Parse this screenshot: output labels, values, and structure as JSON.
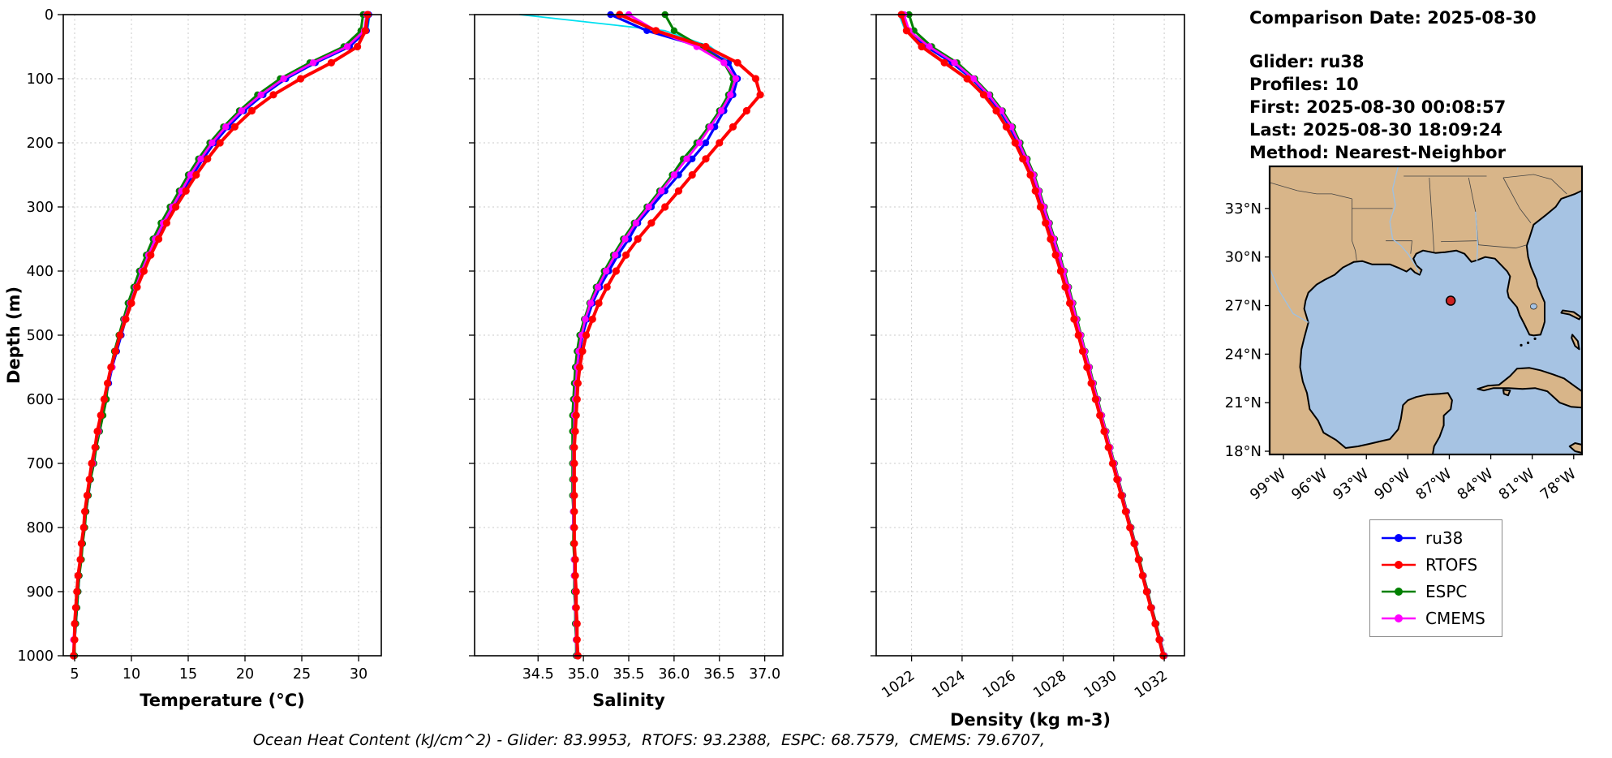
{
  "info": {
    "comparison_date": "Comparison Date: 2025-08-30",
    "glider": "Glider: ru38",
    "profiles": "Profiles: 10",
    "first": "First: 2025-08-30 00:08:57",
    "last": "Last: 2025-08-30 18:09:24",
    "method": "Method: Nearest-Neighbor"
  },
  "footer": {
    "text": "Ocean Heat Content (kJ/cm^2) - Glider: 83.9953,  RTOFS: 93.2388,  ESPC: 68.7579,  CMEMS: 79.6707,"
  },
  "legend": {
    "items": [
      {
        "label": "ru38",
        "color": "#0000ff"
      },
      {
        "label": "RTOFS",
        "color": "#ff0000"
      },
      {
        "label": "ESPC",
        "color": "#008000"
      },
      {
        "label": "CMEMS",
        "color": "#ff00ff"
      }
    ]
  },
  "map": {
    "water_color": "#a6c3e3",
    "land_color": "#d8b589",
    "marker": {
      "lon": -86.9,
      "lat": 27.3,
      "color": "#cc2222"
    },
    "lat_ticks": [
      {
        "value": 33,
        "label": "33°N"
      },
      {
        "value": 30,
        "label": "30°N"
      },
      {
        "value": 27,
        "label": "27°N"
      },
      {
        "value": 24,
        "label": "24°N"
      },
      {
        "value": 21,
        "label": "21°N"
      },
      {
        "value": 18,
        "label": "18°N"
      }
    ],
    "lon_ticks": [
      {
        "value": -99,
        "label": "99°W"
      },
      {
        "value": -96,
        "label": "96°W"
      },
      {
        "value": -93,
        "label": "93°W"
      },
      {
        "value": -90,
        "label": "90°W"
      },
      {
        "value": -87,
        "label": "87°W"
      },
      {
        "value": -84,
        "label": "84°W"
      },
      {
        "value": -81,
        "label": "81°W"
      },
      {
        "value": -78,
        "label": "78°W"
      }
    ]
  },
  "chart_data": {
    "type": "line",
    "ylabel": "Depth (m)",
    "ydomain": [
      0,
      1000
    ],
    "yticks": [
      0,
      100,
      200,
      300,
      400,
      500,
      600,
      700,
      800,
      900,
      1000
    ],
    "depths": [
      0,
      25,
      50,
      75,
      100,
      125,
      150,
      175,
      200,
      225,
      250,
      275,
      300,
      325,
      350,
      375,
      400,
      425,
      450,
      475,
      500,
      525,
      550,
      575,
      600,
      625,
      650,
      675,
      700,
      725,
      750,
      775,
      800,
      825,
      850,
      875,
      900,
      925,
      950,
      975,
      1000
    ],
    "plots": [
      {
        "id": "temperature",
        "xlabel": "Temperature (°C)",
        "key": "temperature",
        "xdomain": [
          4,
          32
        ],
        "xticks": [
          5,
          10,
          15,
          20,
          25,
          30
        ],
        "xtick_labels": [
          "5",
          "10",
          "15",
          "20",
          "25",
          "30"
        ],
        "rotate_xticks": false,
        "show_ylabels": true
      },
      {
        "id": "salinity",
        "xlabel": "Salinity",
        "key": "salinity",
        "xdomain": [
          33.8,
          37.2
        ],
        "xticks": [
          34.5,
          35.0,
          35.5,
          36.0,
          36.5,
          37.0
        ],
        "xtick_labels": [
          "34.5",
          "35.0",
          "35.5",
          "36.0",
          "36.5",
          "37.0"
        ],
        "rotate_xticks": false,
        "show_ylabels": false
      },
      {
        "id": "density",
        "xlabel": "Density (kg m-3)",
        "key": "density",
        "xdomain": [
          1020.6,
          1032.8
        ],
        "xticks": [
          1022,
          1024,
          1026,
          1028,
          1030,
          1032
        ],
        "xtick_labels": [
          "1022",
          "1024",
          "1026",
          "1028",
          "1030",
          "1032"
        ],
        "rotate_xticks": true,
        "show_ylabels": false
      }
    ],
    "series": [
      {
        "name": "ru38 raw profiles",
        "color": "#00e0f0",
        "line_width": 1.8,
        "marker_radius": 0,
        "in_legend": false,
        "temperature": [
          31.0,
          30.8,
          29.1,
          26.0,
          23.4,
          21.4,
          19.7,
          18.4,
          17.2,
          16.2,
          15.3,
          14.4,
          13.6,
          12.8,
          12.1,
          11.5,
          10.9,
          10.4,
          9.9,
          9.4,
          9.0,
          8.6,
          8.2,
          7.9,
          7.6,
          7.3,
          7.0,
          6.8,
          6.5,
          6.3,
          6.1,
          5.9,
          5.8,
          5.6,
          5.5,
          5.4,
          5.2,
          5.1,
          5.0,
          5.0,
          4.9
        ],
        "salinity": [
          34.3,
          35.9,
          36.4,
          36.62,
          36.68,
          36.62,
          36.5,
          36.4,
          36.28,
          36.14,
          36.0,
          35.87,
          35.72,
          35.58,
          35.46,
          35.35,
          35.25,
          35.16,
          35.08,
          35.02,
          34.98,
          34.95,
          34.93,
          34.91,
          34.9,
          34.9,
          34.89,
          34.89,
          34.89,
          34.88,
          34.88,
          34.89,
          34.89,
          34.89,
          34.9,
          34.9,
          34.9,
          34.91,
          34.91,
          34.92,
          34.92
        ],
        "density": [
          1021.5,
          1021.75,
          1022.55,
          1023.55,
          1024.35,
          1024.95,
          1025.45,
          1025.85,
          1026.15,
          1026.45,
          1026.75,
          1026.96,
          1027.16,
          1027.36,
          1027.56,
          1027.76,
          1027.96,
          1028.13,
          1028.3,
          1028.47,
          1028.64,
          1028.8,
          1028.97,
          1029.14,
          1029.3,
          1029.47,
          1029.64,
          1029.8,
          1029.97,
          1030.14,
          1030.3,
          1030.47,
          1030.64,
          1030.8,
          1030.97,
          1031.14,
          1031.3,
          1031.47,
          1031.64,
          1031.8,
          1031.97
        ]
      },
      {
        "name": "ru38",
        "color": "#0000ff",
        "line_width": 3.2,
        "marker_radius": 4.2,
        "in_legend": true,
        "temperature": [
          30.9,
          30.7,
          29.2,
          26.2,
          23.6,
          21.6,
          19.9,
          18.5,
          17.3,
          16.3,
          15.4,
          14.5,
          13.7,
          12.9,
          12.2,
          11.6,
          11.0,
          10.5,
          10.0,
          9.5,
          9.1,
          8.7,
          8.3,
          8.0,
          7.7,
          7.4,
          7.1,
          6.8,
          6.6,
          6.4,
          6.2,
          6.0,
          5.8,
          5.7,
          5.5,
          5.4,
          5.3,
          5.2,
          5.1,
          5.0,
          4.9
        ],
        "salinity": [
          35.3,
          35.7,
          36.3,
          36.6,
          36.7,
          36.65,
          36.55,
          36.45,
          36.35,
          36.2,
          36.05,
          35.9,
          35.75,
          35.6,
          35.5,
          35.38,
          35.28,
          35.18,
          35.1,
          35.04,
          34.99,
          34.96,
          34.94,
          34.92,
          34.91,
          34.9,
          34.9,
          34.89,
          34.89,
          34.89,
          34.89,
          34.89,
          34.89,
          34.9,
          34.9,
          34.9,
          34.91,
          34.91,
          34.92,
          34.92,
          34.93
        ],
        "density": [
          1021.6,
          1021.8,
          1022.6,
          1023.6,
          1024.4,
          1025.0,
          1025.5,
          1025.9,
          1026.2,
          1026.5,
          1026.8,
          1027.0,
          1027.2,
          1027.4,
          1027.6,
          1027.8,
          1028.0,
          1028.17,
          1028.34,
          1028.5,
          1028.67,
          1028.84,
          1029.0,
          1029.17,
          1029.34,
          1029.5,
          1029.67,
          1029.84,
          1030.0,
          1030.17,
          1030.34,
          1030.5,
          1030.67,
          1030.84,
          1031.0,
          1031.17,
          1031.34,
          1031.5,
          1031.67,
          1031.84,
          1032.0
        ]
      },
      {
        "name": "ESPC",
        "color": "#008000",
        "line_width": 3.0,
        "marker_radius": 4.2,
        "in_legend": true,
        "temperature": [
          30.4,
          30.2,
          28.7,
          25.7,
          23.1,
          21.1,
          19.5,
          18.1,
          16.9,
          15.9,
          15.0,
          14.2,
          13.4,
          12.6,
          11.9,
          11.3,
          10.7,
          10.2,
          9.7,
          9.3,
          8.9,
          8.5,
          8.2,
          7.9,
          7.8,
          7.5,
          7.2,
          6.9,
          6.7,
          6.4,
          6.2,
          6.0,
          5.9,
          5.7,
          5.6,
          5.4,
          5.3,
          5.2,
          5.1,
          5.0,
          5.0
        ],
        "salinity": [
          35.9,
          36.0,
          36.3,
          36.55,
          36.65,
          36.6,
          36.5,
          36.38,
          36.25,
          36.1,
          35.98,
          35.84,
          35.7,
          35.56,
          35.44,
          35.33,
          35.23,
          35.14,
          35.07,
          35.01,
          34.96,
          34.93,
          34.91,
          34.9,
          34.89,
          34.88,
          34.88,
          34.88,
          34.88,
          34.88,
          34.88,
          34.89,
          34.89,
          34.89,
          34.9,
          34.9,
          34.9,
          34.91,
          34.91,
          34.92,
          34.92
        ],
        "density": [
          1021.9,
          1022.1,
          1022.8,
          1023.8,
          1024.5,
          1025.1,
          1025.6,
          1026.0,
          1026.3,
          1026.58,
          1026.85,
          1027.06,
          1027.26,
          1027.46,
          1027.66,
          1027.86,
          1028.05,
          1028.22,
          1028.39,
          1028.55,
          1028.71,
          1028.87,
          1029.04,
          1029.2,
          1029.37,
          1029.53,
          1029.7,
          1029.86,
          1030.03,
          1030.19,
          1030.36,
          1030.52,
          1030.69,
          1030.85,
          1031.02,
          1031.18,
          1031.35,
          1031.51,
          1031.68,
          1031.84,
          1032.01
        ]
      },
      {
        "name": "CMEMS",
        "color": "#ff00ff",
        "line_width": 2.8,
        "marker_radius": 4.2,
        "in_legend": true,
        "temperature": [
          30.7,
          30.5,
          29.0,
          26.0,
          23.4,
          21.4,
          19.7,
          18.3,
          17.1,
          16.1,
          15.2,
          14.4,
          13.6,
          12.8,
          12.1,
          11.5,
          10.9,
          10.4,
          9.9,
          9.4,
          9.0,
          8.6,
          8.3,
          7.9,
          7.6,
          7.3,
          7.1,
          6.8,
          6.6,
          6.3,
          6.1,
          5.9,
          5.8,
          5.6,
          5.5,
          5.3,
          5.2,
          5.1,
          5.0,
          4.9,
          4.9
        ],
        "salinity": [
          35.5,
          35.8,
          36.25,
          36.55,
          36.68,
          36.62,
          36.52,
          36.4,
          36.28,
          36.14,
          36.0,
          35.86,
          35.72,
          35.58,
          35.46,
          35.35,
          35.25,
          35.16,
          35.08,
          35.02,
          34.98,
          34.95,
          34.93,
          34.92,
          34.91,
          34.9,
          34.9,
          34.89,
          34.89,
          34.89,
          34.89,
          34.89,
          34.89,
          34.9,
          34.9,
          34.9,
          34.91,
          34.91,
          34.92,
          34.92,
          34.93
        ],
        "density": [
          1021.7,
          1021.9,
          1022.7,
          1023.7,
          1024.45,
          1025.05,
          1025.55,
          1025.95,
          1026.25,
          1026.54,
          1026.82,
          1027.03,
          1027.23,
          1027.43,
          1027.63,
          1027.83,
          1028.02,
          1028.19,
          1028.36,
          1028.52,
          1028.69,
          1028.85,
          1029.02,
          1029.18,
          1029.35,
          1029.52,
          1029.68,
          1029.85,
          1030.01,
          1030.18,
          1030.34,
          1030.51,
          1030.67,
          1030.84,
          1031.0,
          1031.17,
          1031.33,
          1031.5,
          1031.66,
          1031.83,
          1032.0
        ]
      },
      {
        "name": "RTOFS",
        "color": "#ff0000",
        "line_width": 4.0,
        "marker_radius": 4.6,
        "in_legend": true,
        "temperature": [
          30.8,
          30.6,
          29.9,
          27.6,
          24.9,
          22.5,
          20.6,
          19.1,
          17.8,
          16.7,
          15.7,
          14.8,
          13.9,
          13.1,
          12.4,
          11.7,
          11.1,
          10.5,
          10.0,
          9.5,
          9.0,
          8.6,
          8.2,
          7.9,
          7.6,
          7.3,
          7.0,
          6.8,
          6.5,
          6.3,
          6.1,
          5.9,
          5.8,
          5.6,
          5.5,
          5.3,
          5.2,
          5.1,
          5.0,
          5.0,
          4.9
        ],
        "salinity": [
          35.4,
          35.8,
          36.35,
          36.7,
          36.9,
          36.95,
          36.8,
          36.65,
          36.5,
          36.35,
          36.2,
          36.05,
          35.9,
          35.75,
          35.6,
          35.47,
          35.36,
          35.26,
          35.17,
          35.1,
          35.03,
          34.99,
          34.96,
          34.94,
          34.93,
          34.92,
          34.91,
          34.9,
          34.9,
          34.9,
          34.9,
          34.9,
          34.9,
          34.9,
          34.91,
          34.91,
          34.92,
          34.92,
          34.93,
          34.93,
          34.94
        ],
        "density": [
          1021.6,
          1021.8,
          1022.4,
          1023.3,
          1024.2,
          1024.85,
          1025.35,
          1025.75,
          1026.1,
          1026.4,
          1026.7,
          1026.9,
          1027.1,
          1027.3,
          1027.5,
          1027.7,
          1027.9,
          1028.08,
          1028.26,
          1028.43,
          1028.6,
          1028.77,
          1028.94,
          1029.11,
          1029.28,
          1029.45,
          1029.62,
          1029.79,
          1029.96,
          1030.13,
          1030.3,
          1030.47,
          1030.64,
          1030.81,
          1030.98,
          1031.14,
          1031.3,
          1031.47,
          1031.64,
          1031.8,
          1031.96
        ]
      }
    ]
  }
}
